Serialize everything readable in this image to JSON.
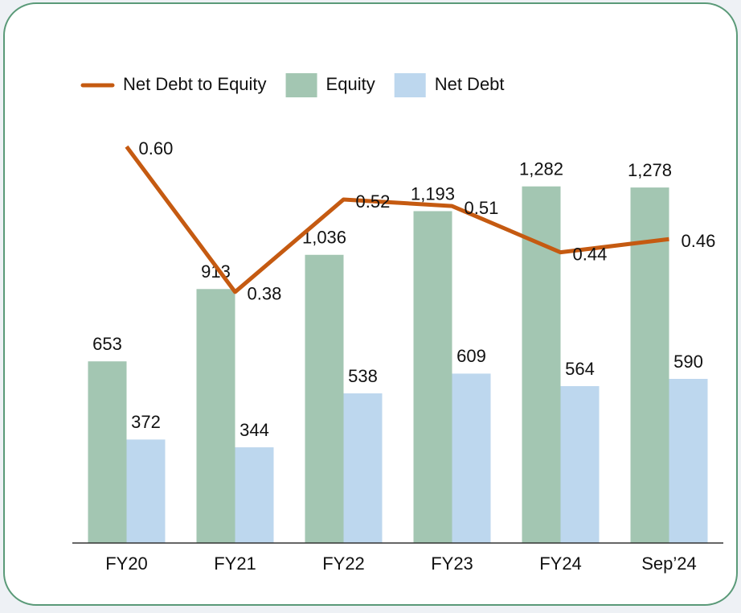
{
  "chart_data": {
    "type": "bar_line",
    "categories": [
      "FY20",
      "FY21",
      "FY22",
      "FY23",
      "FY24",
      "Sep’24"
    ],
    "series": [
      {
        "name": "Equity",
        "type": "bar",
        "color": "#a3c6b2",
        "values": [
          653,
          913,
          1036,
          1193,
          1282,
          1278
        ],
        "value_labels": [
          "653",
          "913",
          "1,036",
          "1,193",
          "1,282",
          "1,278"
        ]
      },
      {
        "name": "Net Debt",
        "type": "bar",
        "color": "#bdd7ee",
        "values": [
          372,
          344,
          538,
          609,
          564,
          590
        ]
      },
      {
        "name": "Net Debt to Equity",
        "type": "line",
        "axis": "y2",
        "color": "#c55a11",
        "values": [
          0.6,
          0.38,
          0.52,
          0.51,
          0.44,
          0.46
        ],
        "value_labels": [
          "0.60",
          "0.38",
          "0.52",
          "0.51",
          "0.44",
          "0.46"
        ]
      }
    ],
    "ylim": [
      0,
      1900
    ],
    "y2lim": [
      0,
      0.8
    ],
    "legend": "top"
  }
}
